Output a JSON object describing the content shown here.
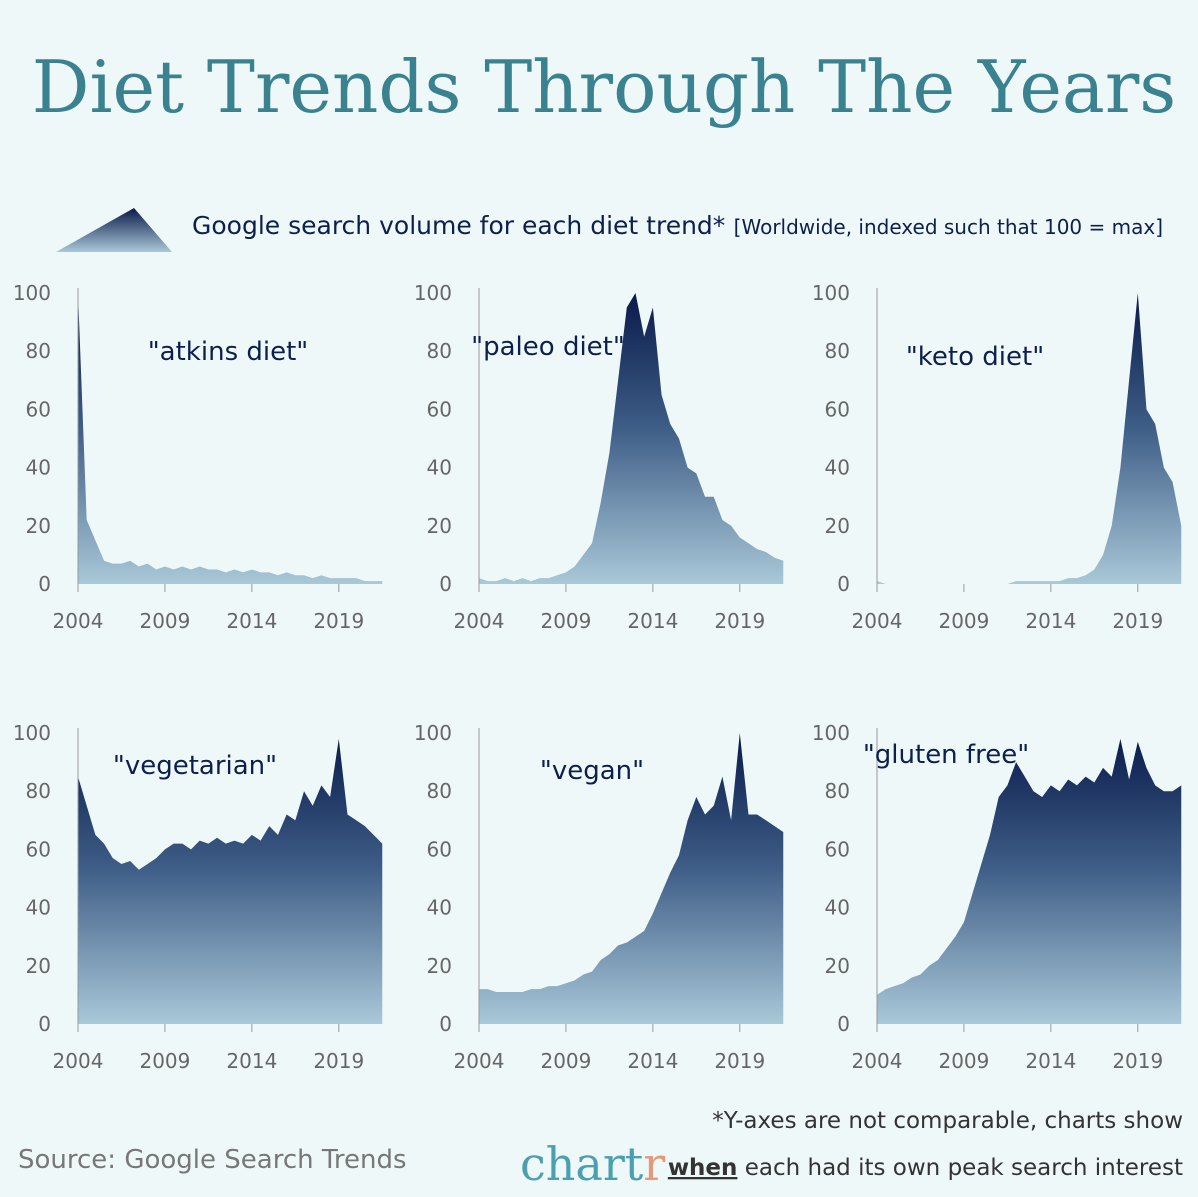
{
  "header": {
    "title": "Diet Trends Through The Years",
    "subtitle": "Google search volume for each diet trend*",
    "subtitle_note": "[Worldwide, indexed such that 100 = max]"
  },
  "footer": {
    "source": "Source: Google Search Trends",
    "note": "*Y-axes are not comparable, charts show",
    "note_when": "when",
    "note_rest": "each had its own peak search interest",
    "logo_main": "chart",
    "logo_end": "r"
  },
  "chart_data": [
    {
      "type": "area",
      "title": "\"atkins diet\"",
      "xlim": [
        2004,
        2021.6
      ],
      "ylim": [
        0,
        100
      ],
      "xticks": [
        2004,
        2009,
        2014,
        2019
      ],
      "yticks": [
        0,
        20,
        40,
        60,
        80,
        100
      ],
      "x": [
        2004,
        2004.5,
        2005,
        2005.5,
        2006,
        2006.5,
        2007,
        2007.5,
        2008,
        2008.5,
        2009,
        2009.5,
        2010,
        2010.5,
        2011,
        2011.5,
        2012,
        2012.5,
        2013,
        2013.5,
        2014,
        2014.5,
        2015,
        2015.5,
        2016,
        2016.5,
        2017,
        2017.5,
        2018,
        2018.5,
        2019,
        2019.5,
        2020,
        2020.5,
        2021,
        2021.5
      ],
      "values": [
        100,
        22,
        15,
        8,
        7,
        7,
        8,
        6,
        7,
        5,
        6,
        5,
        6,
        5,
        6,
        5,
        5,
        4,
        5,
        4,
        5,
        4,
        4,
        3,
        4,
        3,
        3,
        2,
        3,
        2,
        2,
        2,
        2,
        1,
        1,
        1
      ]
    },
    {
      "type": "area",
      "title": "\"paleo diet\"",
      "xlim": [
        2004,
        2021.6
      ],
      "ylim": [
        0,
        100
      ],
      "xticks": [
        2004,
        2009,
        2014,
        2019
      ],
      "yticks": [
        0,
        20,
        40,
        60,
        80,
        100
      ],
      "x": [
        2004,
        2004.5,
        2005,
        2005.5,
        2006,
        2006.5,
        2007,
        2007.5,
        2008,
        2008.5,
        2009,
        2009.5,
        2010,
        2010.5,
        2011,
        2011.5,
        2012,
        2012.5,
        2013,
        2013.5,
        2014,
        2014.5,
        2015,
        2015.5,
        2016,
        2016.5,
        2017,
        2017.5,
        2018,
        2018.5,
        2019,
        2019.5,
        2020,
        2020.5,
        2021,
        2021.5
      ],
      "values": [
        2,
        1,
        1,
        2,
        1,
        2,
        1,
        2,
        2,
        3,
        4,
        6,
        10,
        14,
        28,
        45,
        70,
        95,
        100,
        85,
        95,
        65,
        55,
        50,
        40,
        38,
        30,
        30,
        22,
        20,
        16,
        14,
        12,
        11,
        9,
        8
      ]
    },
    {
      "type": "area",
      "title": "\"keto diet\"",
      "xlim": [
        2004,
        2021.6
      ],
      "ylim": [
        0,
        100
      ],
      "xticks": [
        2004,
        2009,
        2014,
        2019
      ],
      "yticks": [
        0,
        20,
        40,
        60,
        80,
        100
      ],
      "x": [
        2004,
        2004.5,
        2005,
        2005.5,
        2006,
        2006.5,
        2007,
        2007.5,
        2008,
        2008.5,
        2009,
        2009.5,
        2010,
        2010.5,
        2011,
        2011.5,
        2012,
        2012.5,
        2013,
        2013.5,
        2014,
        2014.5,
        2015,
        2015.5,
        2016,
        2016.5,
        2017,
        2017.5,
        2018,
        2018.5,
        2019,
        2019.5,
        2020,
        2020.5,
        2021,
        2021.5
      ],
      "values": [
        1,
        0,
        0,
        0,
        0,
        0,
        0,
        0,
        0,
        0,
        0,
        0,
        0,
        0,
        0,
        0,
        1,
        1,
        1,
        1,
        1,
        1,
        2,
        2,
        3,
        5,
        10,
        20,
        40,
        70,
        100,
        60,
        55,
        40,
        35,
        20
      ]
    },
    {
      "type": "area",
      "title": "\"vegetarian\"",
      "xlim": [
        2004,
        2021.6
      ],
      "ylim": [
        0,
        100
      ],
      "xticks": [
        2004,
        2009,
        2014,
        2019
      ],
      "yticks": [
        0,
        20,
        40,
        60,
        80,
        100
      ],
      "x": [
        2004,
        2004.5,
        2005,
        2005.5,
        2006,
        2006.5,
        2007,
        2007.5,
        2008,
        2008.5,
        2009,
        2009.5,
        2010,
        2010.5,
        2011,
        2011.5,
        2012,
        2012.5,
        2013,
        2013.5,
        2014,
        2014.5,
        2015,
        2015.5,
        2016,
        2016.5,
        2017,
        2017.5,
        2018,
        2018.5,
        2019,
        2019.5,
        2020,
        2020.5,
        2021,
        2021.5
      ],
      "values": [
        85,
        75,
        65,
        62,
        57,
        55,
        56,
        53,
        55,
        57,
        60,
        62,
        62,
        60,
        63,
        62,
        64,
        62,
        63,
        62,
        65,
        63,
        68,
        65,
        72,
        70,
        80,
        75,
        82,
        78,
        98,
        72,
        70,
        68,
        65,
        62
      ]
    },
    {
      "type": "area",
      "title": "\"vegan\"",
      "xlim": [
        2004,
        2021.6
      ],
      "ylim": [
        0,
        100
      ],
      "xticks": [
        2004,
        2009,
        2014,
        2019
      ],
      "yticks": [
        0,
        20,
        40,
        60,
        80,
        100
      ],
      "x": [
        2004,
        2004.5,
        2005,
        2005.5,
        2006,
        2006.5,
        2007,
        2007.5,
        2008,
        2008.5,
        2009,
        2009.5,
        2010,
        2010.5,
        2011,
        2011.5,
        2012,
        2012.5,
        2013,
        2013.5,
        2014,
        2014.5,
        2015,
        2015.5,
        2016,
        2016.5,
        2017,
        2017.5,
        2018,
        2018.5,
        2019,
        2019.5,
        2020,
        2020.5,
        2021,
        2021.5
      ],
      "values": [
        12,
        12,
        11,
        11,
        11,
        11,
        12,
        12,
        13,
        13,
        14,
        15,
        17,
        18,
        22,
        24,
        27,
        28,
        30,
        32,
        38,
        45,
        52,
        58,
        70,
        78,
        72,
        75,
        85,
        70,
        100,
        72,
        72,
        70,
        68,
        66
      ]
    },
    {
      "type": "area",
      "title": "\"gluten free\"",
      "xlim": [
        2004,
        2021.6
      ],
      "ylim": [
        0,
        100
      ],
      "xticks": [
        2004,
        2009,
        2014,
        2019
      ],
      "yticks": [
        0,
        20,
        40,
        60,
        80,
        100
      ],
      "x": [
        2004,
        2004.5,
        2005,
        2005.5,
        2006,
        2006.5,
        2007,
        2007.5,
        2008,
        2008.5,
        2009,
        2009.5,
        2010,
        2010.5,
        2011,
        2011.5,
        2012,
        2012.5,
        2013,
        2013.5,
        2014,
        2014.5,
        2015,
        2015.5,
        2016,
        2016.5,
        2017,
        2017.5,
        2018,
        2018.5,
        2019,
        2019.5,
        2020,
        2020.5,
        2021,
        2021.5
      ],
      "values": [
        10,
        12,
        13,
        14,
        16,
        17,
        20,
        22,
        26,
        30,
        35,
        45,
        55,
        65,
        78,
        82,
        90,
        85,
        80,
        78,
        82,
        80,
        84,
        82,
        85,
        83,
        88,
        85,
        98,
        84,
        97,
        88,
        82,
        80,
        80,
        82
      ]
    }
  ]
}
